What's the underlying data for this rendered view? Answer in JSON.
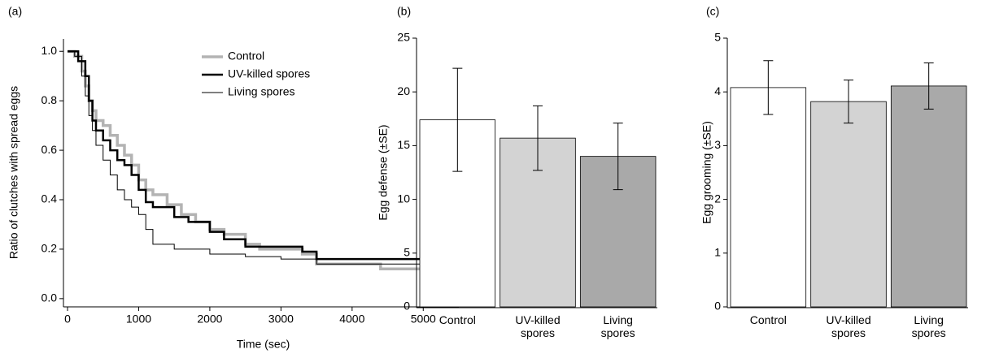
{
  "chart_data": [
    {
      "type": "line",
      "panel": "(a)",
      "step": true,
      "xlabel": "Time (sec)",
      "ylabel": "Ratio of clutches with spread eggs",
      "xlim": [
        0,
        5500
      ],
      "xticks": [
        0,
        1000,
        2000,
        3000,
        4000,
        5000
      ],
      "ylim": [
        -0.03,
        1.05
      ],
      "yticks": [
        {
          "value": 0,
          "label": "0.0"
        },
        0.2,
        0.4,
        0.6,
        0.8,
        {
          "value": 1,
          "label": "1.0"
        }
      ],
      "legend": "upper right",
      "series": [
        {
          "name": "Control",
          "color": "#b3b3b3",
          "linewidth": 3.5,
          "x": [
            0,
            100,
            200,
            250,
            300,
            350,
            400,
            500,
            600,
            700,
            800,
            900,
            1000,
            1100,
            1200,
            1400,
            1600,
            1800,
            2000,
            2200,
            2500,
            2700,
            3300,
            3500,
            4400,
            5400
          ],
          "values": [
            1.0,
            0.98,
            0.92,
            0.86,
            0.8,
            0.76,
            0.72,
            0.7,
            0.66,
            0.62,
            0.58,
            0.54,
            0.48,
            0.44,
            0.42,
            0.38,
            0.34,
            0.31,
            0.28,
            0.26,
            0.22,
            0.2,
            0.18,
            0.14,
            0.12,
            0.12
          ]
        },
        {
          "name": "UV-killed spores",
          "color": "#000000",
          "linewidth": 2.5,
          "x": [
            0,
            150,
            250,
            300,
            350,
            400,
            500,
            600,
            700,
            800,
            900,
            1000,
            1100,
            1200,
            1500,
            1700,
            2000,
            2200,
            2500,
            2700,
            3300,
            3500,
            5400
          ],
          "values": [
            1.0,
            0.96,
            0.9,
            0.8,
            0.72,
            0.68,
            0.64,
            0.6,
            0.56,
            0.54,
            0.5,
            0.44,
            0.39,
            0.37,
            0.33,
            0.31,
            0.27,
            0.24,
            0.21,
            0.21,
            0.19,
            0.16,
            0.16
          ]
        },
        {
          "name": "Living spores",
          "color": "#000000",
          "linewidth": 1,
          "x": [
            0,
            100,
            200,
            250,
            300,
            350,
            400,
            500,
            600,
            700,
            800,
            900,
            1000,
            1100,
            1200,
            1500,
            2000,
            2500,
            3000,
            3500,
            5400
          ],
          "values": [
            1.0,
            0.98,
            0.9,
            0.82,
            0.74,
            0.68,
            0.62,
            0.56,
            0.5,
            0.44,
            0.4,
            0.37,
            0.34,
            0.28,
            0.22,
            0.2,
            0.18,
            0.17,
            0.16,
            0.14,
            0.14
          ]
        }
      ]
    },
    {
      "type": "bar",
      "panel": "(b)",
      "ylabel": "Egg defense (±SE)",
      "categories": [
        "Control",
        "UV-killed spores",
        "Living spores"
      ],
      "values": [
        17.4,
        15.7,
        14.0
      ],
      "errors": [
        4.8,
        3.0,
        3.1
      ],
      "colors": [
        "#ffffff",
        "#d3d3d3",
        "#a9a9a9"
      ],
      "ylim": [
        0,
        25
      ],
      "yticks": [
        0,
        5,
        10,
        15,
        20,
        25
      ]
    },
    {
      "type": "bar",
      "panel": "(c)",
      "ylabel": "Egg grooming (±SE)",
      "categories": [
        "Control",
        "UV-killed spores",
        "Living spores"
      ],
      "values": [
        4.08,
        3.82,
        4.11
      ],
      "errors": [
        0.5,
        0.4,
        0.43
      ],
      "colors": [
        "#ffffff",
        "#d3d3d3",
        "#a9a9a9"
      ],
      "ylim": [
        0,
        5
      ],
      "yticks": [
        0,
        1,
        2,
        3,
        4,
        5
      ]
    }
  ]
}
